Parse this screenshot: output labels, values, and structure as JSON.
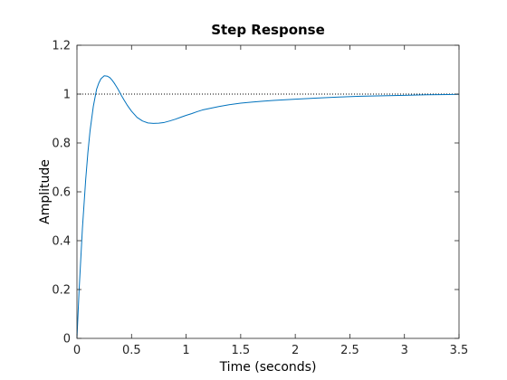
{
  "chart_data": {
    "type": "line",
    "title": "Step Response",
    "xlabel": "Time (seconds)",
    "ylabel": "Amplitude",
    "xlim": [
      0,
      3.5
    ],
    "ylim": [
      0,
      1.2
    ],
    "xticks": [
      0,
      0.5,
      1,
      1.5,
      2,
      2.5,
      3,
      3.5
    ],
    "xtick_labels": [
      "0",
      "0.5",
      "1",
      "1.5",
      "2",
      "2.5",
      "3",
      "3.5"
    ],
    "yticks": [
      0,
      0.2,
      0.4,
      0.6,
      0.8,
      1,
      1.2
    ],
    "ytick_labels": [
      "0",
      "0.2",
      "0.4",
      "0.6",
      "0.8",
      "1",
      "1.2"
    ],
    "grid": false,
    "reference_line": {
      "y": 1,
      "style": "dotted",
      "color": "#000000"
    },
    "series": [
      {
        "color": "#0072bd",
        "x": [
          0,
          0.02,
          0.05,
          0.08,
          0.1,
          0.12,
          0.15,
          0.18,
          0.2,
          0.22,
          0.25,
          0.28,
          0.3,
          0.32,
          0.34,
          0.36,
          0.38,
          0.4,
          0.43,
          0.46,
          0.5,
          0.55,
          0.6,
          0.65,
          0.7,
          0.75,
          0.8,
          0.85,
          0.9,
          0.95,
          1.0,
          1.05,
          1.1,
          1.15,
          1.2,
          1.3,
          1.4,
          1.5,
          1.6,
          1.7,
          1.8,
          2.0,
          2.2,
          2.4,
          2.6,
          2.8,
          3.0,
          3.2,
          3.4,
          3.5
        ],
        "y": [
          0,
          0.2,
          0.45,
          0.65,
          0.76,
          0.85,
          0.95,
          1.02,
          1.045,
          1.063,
          1.075,
          1.073,
          1.068,
          1.058,
          1.046,
          1.032,
          1.017,
          1.0,
          0.977,
          0.955,
          0.93,
          0.905,
          0.89,
          0.882,
          0.88,
          0.881,
          0.884,
          0.89,
          0.897,
          0.905,
          0.913,
          0.92,
          0.928,
          0.935,
          0.94,
          0.949,
          0.957,
          0.963,
          0.967,
          0.971,
          0.974,
          0.979,
          0.984,
          0.988,
          0.991,
          0.993,
          0.995,
          0.997,
          0.998,
          0.999
        ]
      }
    ]
  }
}
